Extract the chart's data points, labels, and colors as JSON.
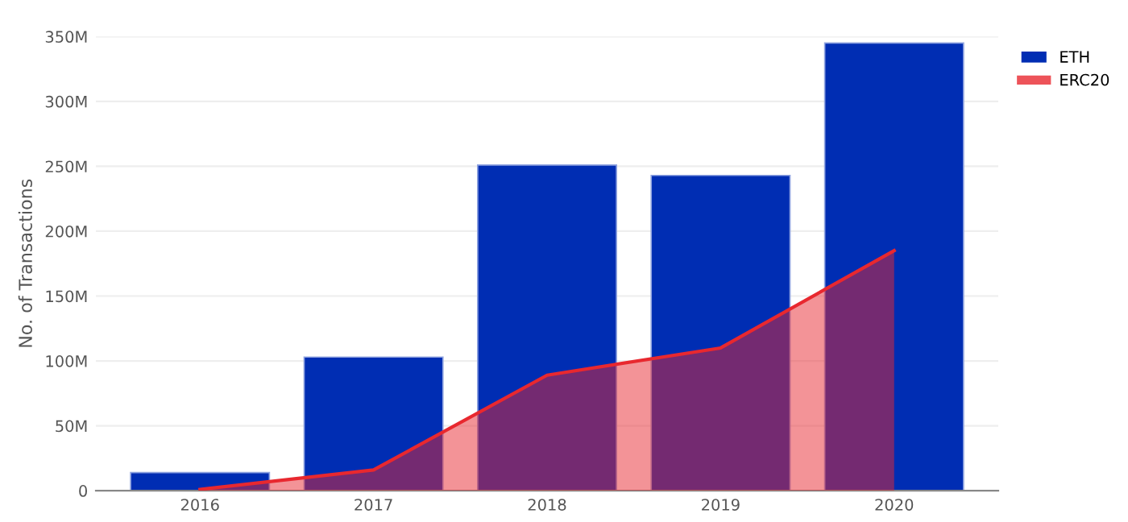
{
  "chart_data": {
    "type": "bar",
    "ylabel": "No. of Transactions",
    "categories": [
      "2016",
      "2017",
      "2018",
      "2019",
      "2020"
    ],
    "series": [
      {
        "name": "ETH",
        "color": "#002db3",
        "values": [
          14000000,
          103000000,
          251000000,
          243000000,
          345000000
        ]
      },
      {
        "name": "ERC20",
        "type": "area",
        "color": "#e8282f",
        "values": [
          1000000,
          16000000,
          89000000,
          110000000,
          185000000
        ]
      }
    ],
    "ylim": [
      0,
      350000000
    ],
    "yticks": [
      0,
      {
        "value": 50000000,
        "label": "50M"
      },
      {
        "value": 100000000,
        "label": "100M"
      },
      {
        "value": 150000000,
        "label": "150M"
      },
      {
        "value": 200000000,
        "label": "200M"
      },
      {
        "value": 250000000,
        "label": "250M"
      },
      {
        "value": 300000000,
        "label": "300M"
      },
      {
        "value": 350000000,
        "label": "350M"
      }
    ],
    "grid": "y",
    "legend": "top right"
  }
}
